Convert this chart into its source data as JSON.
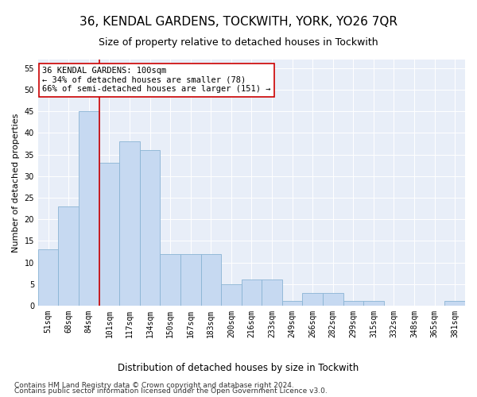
{
  "title": "36, KENDAL GARDENS, TOCKWITH, YORK, YO26 7QR",
  "subtitle": "Size of property relative to detached houses in Tockwith",
  "xlabel": "Distribution of detached houses by size in Tockwith",
  "ylabel": "Number of detached properties",
  "footer_line1": "Contains HM Land Registry data © Crown copyright and database right 2024.",
  "footer_line2": "Contains public sector information licensed under the Open Government Licence v3.0.",
  "bin_labels": [
    "51sqm",
    "68sqm",
    "84sqm",
    "101sqm",
    "117sqm",
    "134sqm",
    "150sqm",
    "167sqm",
    "183sqm",
    "200sqm",
    "216sqm",
    "233sqm",
    "249sqm",
    "266sqm",
    "282sqm",
    "299sqm",
    "315sqm",
    "332sqm",
    "348sqm",
    "365sqm",
    "381sqm"
  ],
  "bar_values": [
    13,
    23,
    45,
    33,
    38,
    36,
    12,
    12,
    12,
    5,
    6,
    6,
    1,
    3,
    3,
    1,
    1,
    0,
    0,
    0,
    1
  ],
  "bar_color": "#c6d9f1",
  "bar_edge_color": "#8ab4d4",
  "vline_color": "#cc0000",
  "vline_x": 2.5,
  "annotation_text": "36 KENDAL GARDENS: 100sqm\n← 34% of detached houses are smaller (78)\n66% of semi-detached houses are larger (151) →",
  "annotation_box_color": "#ffffff",
  "annotation_box_edge_color": "#cc0000",
  "ylim": [
    0,
    57
  ],
  "yticks": [
    0,
    5,
    10,
    15,
    20,
    25,
    30,
    35,
    40,
    45,
    50,
    55
  ],
  "background_color": "#e8eef8",
  "grid_color": "#ffffff",
  "title_fontsize": 11,
  "subtitle_fontsize": 9,
  "ylabel_fontsize": 8,
  "xlabel_fontsize": 8.5,
  "tick_fontsize": 7,
  "annotation_fontsize": 7.5,
  "footer_fontsize": 6.5
}
